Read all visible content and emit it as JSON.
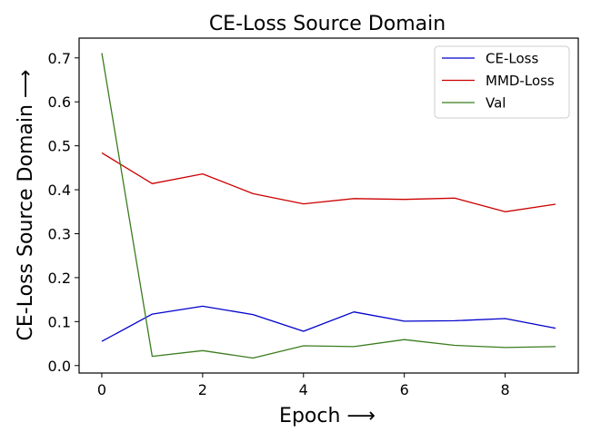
{
  "chart_data": {
    "type": "line",
    "title": "CE-Loss Source Domain",
    "xlabel": "Epoch ⟶",
    "ylabel": "CE-Loss Source Domain ⟶",
    "x": [
      0,
      1,
      2,
      3,
      4,
      5,
      6,
      7,
      8,
      9
    ],
    "xlim": [
      -0.45,
      9.45
    ],
    "ylim": [
      -0.017,
      0.745
    ],
    "xticks": [
      0,
      2,
      4,
      6,
      8
    ],
    "yticks": [
      0.0,
      0.1,
      0.2,
      0.3,
      0.4,
      0.5,
      0.6,
      0.7
    ],
    "grid": false,
    "legend_position": "top-right",
    "series": [
      {
        "name": "CE-Loss",
        "color": "#0000cc",
        "values": [
          0.055,
          0.117,
          0.135,
          0.116,
          0.078,
          0.122,
          0.101,
          0.102,
          0.107,
          0.085
        ]
      },
      {
        "name": "MMD-Loss",
        "color": "#cc0000",
        "values": [
          0.484,
          0.414,
          0.436,
          0.391,
          0.368,
          0.38,
          0.378,
          0.381,
          0.35,
          0.367
        ]
      },
      {
        "name": "Val",
        "color": "#3a7d1e",
        "values": [
          0.711,
          0.021,
          0.034,
          0.017,
          0.045,
          0.043,
          0.059,
          0.046,
          0.041,
          0.043
        ]
      }
    ]
  }
}
